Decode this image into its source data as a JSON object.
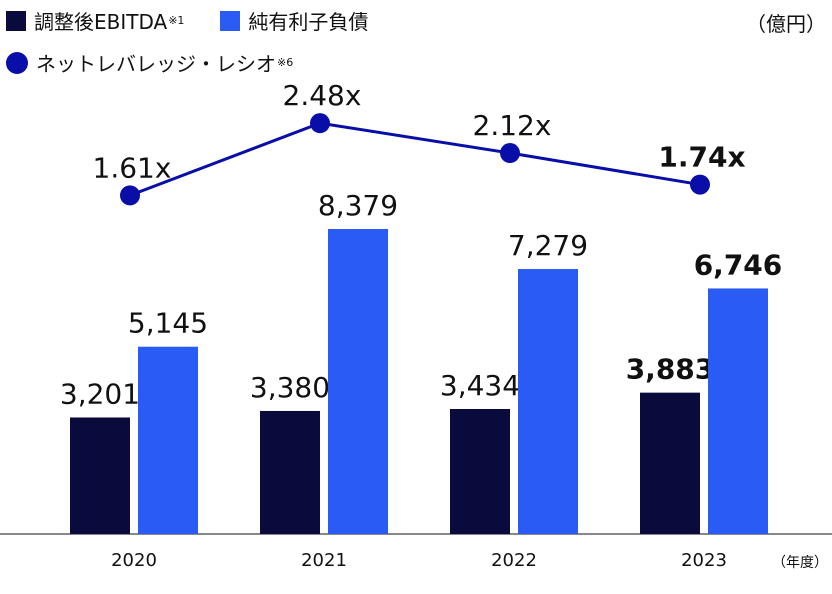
{
  "legend": {
    "ebitda": {
      "label": "調整後EBITDA",
      "note": "※1"
    },
    "net_debt": {
      "label": "純有利子負債",
      "note": ""
    },
    "leverage": {
      "label": "ネットレバレッジ・レシオ",
      "note": "※6"
    }
  },
  "unit_label": "（億円）",
  "x_unit_label": "（年度）",
  "colors": {
    "ebitda": "#0a0a3c",
    "net_debt": "#2a5cf5",
    "leverage": "#0a0ea8",
    "axis": "#888888"
  },
  "chart_data": {
    "type": "bar",
    "categories": [
      "2020",
      "2021",
      "2022",
      "2023"
    ],
    "ylim": [
      0,
      10000
    ],
    "series": [
      {
        "name": "調整後EBITDA",
        "values": [
          3201,
          3380,
          3434,
          3883
        ],
        "labels": [
          "3,201",
          "3,380",
          "3,434",
          "3,883"
        ]
      },
      {
        "name": "純有利子負債",
        "values": [
          5145,
          8379,
          7279,
          6746
        ],
        "labels": [
          "5,145",
          "8,379",
          "7,279",
          "6,746"
        ]
      }
    ],
    "line_series": {
      "name": "ネットレバレッジ・レシオ",
      "values": [
        1.61,
        2.48,
        2.12,
        1.74
      ],
      "labels": [
        "1.61x",
        "2.48x",
        "2.12x",
        "1.74x"
      ]
    },
    "bold_category_index": 3
  }
}
